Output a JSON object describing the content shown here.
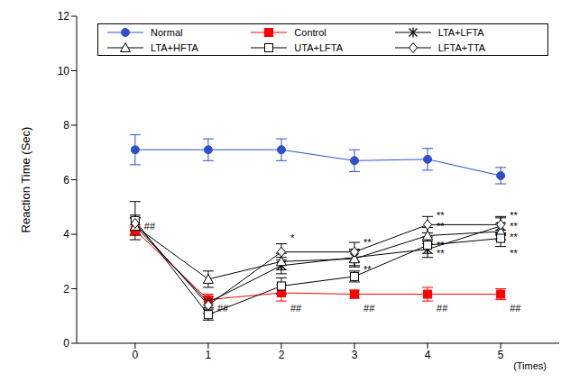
{
  "chart_data": {
    "type": "line",
    "x_label": "(Times)",
    "y_label": "Reaction Time (Sec)",
    "x": [
      0,
      1,
      2,
      3,
      4,
      5
    ],
    "xlim": [
      -0.8,
      5.8
    ],
    "xticks": [
      0,
      1,
      2,
      3,
      4,
      5
    ],
    "ylim": [
      0,
      12
    ],
    "yticks": [
      0,
      2,
      4,
      6,
      8,
      10,
      12
    ],
    "legend": "top",
    "series": [
      {
        "name": "Normal",
        "color": "#2f4fcf",
        "marker": "circle",
        "values": [
          7.1,
          7.1,
          7.1,
          6.7,
          6.75,
          6.15
        ],
        "errors": [
          0.55,
          0.4,
          0.4,
          0.4,
          0.4,
          0.3
        ]
      },
      {
        "name": "Control",
        "color": "#ff0000",
        "marker": "square",
        "values": [
          4.15,
          1.6,
          1.85,
          1.8,
          1.8,
          1.8
        ],
        "errors": [
          0.2,
          0.2,
          0.3,
          0.15,
          0.25,
          0.2
        ]
      },
      {
        "name": "LTA+LFTA",
        "color": "#000000",
        "marker": "asterisk",
        "values": [
          4.3,
          1.5,
          2.85,
          3.15,
          3.45,
          4.3
        ],
        "errors": [
          0.3,
          0.2,
          0.3,
          0.3,
          0.3,
          0.3
        ]
      },
      {
        "name": "LTA+HFTA",
        "color": "#000000",
        "marker": "open_triangle",
        "values": [
          4.3,
          2.35,
          3.0,
          3.1,
          3.95,
          4.1
        ],
        "errors": [
          0.3,
          0.3,
          0.3,
          0.3,
          0.3,
          0.3
        ]
      },
      {
        "name": "UTA+LFTA",
        "color": "#000000",
        "marker": "open_square",
        "values": [
          4.5,
          1.05,
          2.1,
          2.45,
          3.6,
          3.85
        ],
        "errors": [
          0.7,
          0.2,
          0.3,
          0.2,
          0.3,
          0.3
        ]
      },
      {
        "name": "LFTA+TTA",
        "color": "#000000",
        "marker": "open_diamond",
        "values": [
          4.4,
          1.4,
          3.35,
          3.35,
          4.35,
          4.35
        ],
        "errors": [
          0.3,
          0.3,
          0.3,
          0.35,
          0.3,
          0.3
        ]
      }
    ],
    "annotations": [
      {
        "x": 0,
        "y": 4.3,
        "text": "##"
      },
      {
        "x": 1,
        "y": 1.3,
        "text": "##"
      },
      {
        "x": 2,
        "y": 1.3,
        "text": "##"
      },
      {
        "x": 2,
        "y": 3.87,
        "text": "*"
      },
      {
        "x": 3,
        "y": 3.7,
        "text": "**"
      },
      {
        "x": 3,
        "y": 2.7,
        "text": "**"
      },
      {
        "x": 3,
        "y": 1.3,
        "text": "##"
      },
      {
        "x": 4,
        "y": 4.7,
        "text": "**"
      },
      {
        "x": 4,
        "y": 4.3,
        "text": "**"
      },
      {
        "x": 4,
        "y": 3.6,
        "text": "**"
      },
      {
        "x": 4,
        "y": 3.3,
        "text": "**"
      },
      {
        "x": 4,
        "y": 1.3,
        "text": "##"
      },
      {
        "x": 5,
        "y": 4.7,
        "text": "**"
      },
      {
        "x": 5,
        "y": 4.3,
        "text": "**"
      },
      {
        "x": 5,
        "y": 3.9,
        "text": "**"
      },
      {
        "x": 5,
        "y": 3.3,
        "text": "**"
      },
      {
        "x": 5,
        "y": 1.3,
        "text": "##"
      }
    ]
  }
}
